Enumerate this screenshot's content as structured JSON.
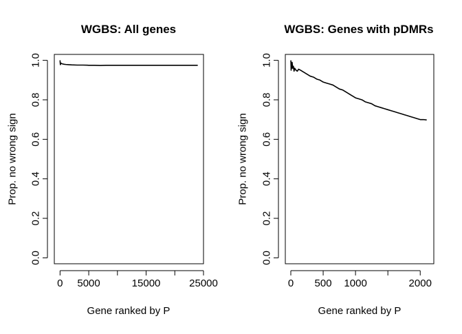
{
  "chart_data": [
    {
      "type": "line",
      "title": "WGBS: All genes",
      "xlabel": "Gene ranked by P",
      "ylabel": "Prop. no wrong sign",
      "xlim": [
        -1000,
        25000
      ],
      "ylim": [
        -0.03,
        1.03
      ],
      "x_ticks": [
        0,
        5000,
        10000,
        15000,
        20000,
        25000
      ],
      "x_tick_labels": [
        "0",
        "5000",
        "",
        "15000",
        "",
        "25000"
      ],
      "y_ticks": [
        0.0,
        0.2,
        0.4,
        0.6,
        0.8,
        1.0
      ],
      "y_tick_labels": [
        "0.0",
        "0.2",
        "0.4",
        "0.6",
        "0.8",
        "1.0"
      ],
      "grid": false,
      "legend": "none",
      "series": [
        {
          "color": "#000000",
          "x": [
            1,
            30,
            60,
            100,
            150,
            250,
            400,
            700,
            1000,
            1500,
            2000,
            3000,
            4000,
            5000,
            6000,
            7000,
            8000,
            10000,
            12000,
            14000,
            16000,
            18000,
            20000,
            22000,
            24000
          ],
          "y": [
            1.0,
            0.985,
            0.978,
            0.982,
            0.986,
            0.984,
            0.982,
            0.98,
            0.979,
            0.978,
            0.977,
            0.976,
            0.976,
            0.975,
            0.975,
            0.974,
            0.975,
            0.975,
            0.975,
            0.975,
            0.975,
            0.975,
            0.975,
            0.975,
            0.975
          ]
        }
      ]
    },
    {
      "type": "line",
      "title": "WGBS: Genes with pDMRs",
      "xlabel": "Gene ranked by P",
      "ylabel": "Prop. no wrong sign",
      "xlim": [
        -85,
        2210
      ],
      "ylim": [
        -0.03,
        1.03
      ],
      "x_ticks": [
        0,
        500,
        1000,
        1500,
        2000
      ],
      "x_tick_labels": [
        "0",
        "500",
        "1000",
        "",
        "2000"
      ],
      "y_ticks": [
        0.0,
        0.2,
        0.4,
        0.6,
        0.8,
        1.0
      ],
      "y_tick_labels": [
        "0.0",
        "0.2",
        "0.4",
        "0.6",
        "0.8",
        "1.0"
      ],
      "grid": false,
      "legend": "none",
      "series": [
        {
          "color": "#000000",
          "x": [
            1,
            5,
            10,
            15,
            20,
            30,
            40,
            50,
            60,
            80,
            100,
            120,
            150,
            200,
            250,
            300,
            350,
            400,
            450,
            500,
            550,
            600,
            650,
            700,
            750,
            800,
            850,
            900,
            950,
            1000,
            1050,
            1100,
            1150,
            1200,
            1250,
            1300,
            1350,
            1400,
            1450,
            1500,
            1550,
            1600,
            1650,
            1700,
            1750,
            1800,
            1850,
            1900,
            1950,
            2000,
            2050,
            2100
          ],
          "y": [
            1.0,
            0.95,
            0.98,
            0.96,
            0.99,
            0.96,
            0.97,
            0.945,
            0.96,
            0.95,
            0.945,
            0.955,
            0.95,
            0.94,
            0.93,
            0.92,
            0.915,
            0.905,
            0.9,
            0.89,
            0.885,
            0.88,
            0.875,
            0.865,
            0.855,
            0.85,
            0.84,
            0.83,
            0.82,
            0.81,
            0.805,
            0.8,
            0.79,
            0.785,
            0.78,
            0.77,
            0.765,
            0.76,
            0.755,
            0.75,
            0.745,
            0.74,
            0.735,
            0.73,
            0.725,
            0.72,
            0.715,
            0.71,
            0.705,
            0.7,
            0.7,
            0.698
          ]
        }
      ]
    }
  ]
}
